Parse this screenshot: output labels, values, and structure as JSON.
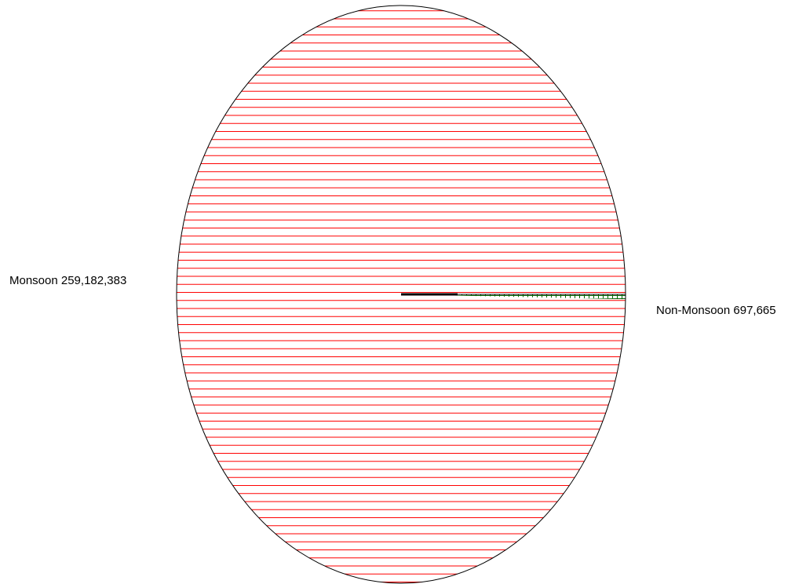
{
  "chart_data": {
    "type": "pie",
    "title": "",
    "slices": [
      {
        "category": "Monsoon",
        "value": 259182383,
        "value_label": "259,182,383",
        "color": "#ff0000",
        "fill_pattern": "horizontal-lines"
      },
      {
        "category": "Non-Monsoon",
        "value": 697665,
        "value_label": "697,665",
        "color": "#006400",
        "fill_pattern": "grid"
      }
    ],
    "border_color": "#000000",
    "legend": "none",
    "labels_outside": true
  }
}
